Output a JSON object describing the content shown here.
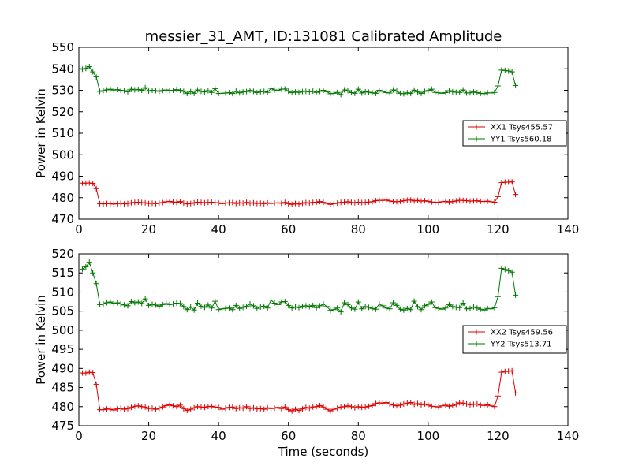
{
  "title": "messier_31_AMT, ID:131081 Calibrated Amplitude",
  "chart_data": [
    {
      "type": "line",
      "title": "messier_31_AMT, ID:131081 Calibrated Amplitude",
      "xlabel": "",
      "ylabel": "Power in Kelvin",
      "xlim": [
        0,
        140
      ],
      "ylim": [
        470,
        550
      ],
      "xticks": [
        0,
        20,
        40,
        60,
        80,
        100,
        120,
        140
      ],
      "yticks": [
        470,
        480,
        490,
        500,
        510,
        520,
        530,
        540,
        550
      ],
      "grid": false,
      "legend_position": "center-right",
      "series": [
        {
          "name": "XX1 Tsys455.57",
          "color": "#dd0000",
          "x": [
            1,
            2,
            3,
            4,
            5,
            6,
            7,
            8,
            9,
            10,
            11,
            12,
            13,
            14,
            15,
            16,
            17,
            18,
            19,
            20,
            21,
            22,
            23,
            24,
            25,
            26,
            27,
            28,
            29,
            30,
            31,
            32,
            33,
            34,
            35,
            36,
            37,
            38,
            39,
            40,
            41,
            42,
            43,
            44,
            45,
            46,
            47,
            48,
            49,
            50,
            51,
            52,
            53,
            54,
            55,
            56,
            57,
            58,
            59,
            60,
            61,
            62,
            63,
            64,
            65,
            66,
            67,
            68,
            69,
            70,
            71,
            72,
            73,
            74,
            75,
            76,
            77,
            78,
            79,
            80,
            81,
            82,
            83,
            84,
            85,
            86,
            87,
            88,
            89,
            90,
            91,
            92,
            93,
            94,
            95,
            96,
            97,
            98,
            99,
            100,
            101,
            102,
            103,
            104,
            105,
            106,
            107,
            108,
            109,
            110,
            111,
            112,
            113,
            114,
            115,
            116,
            117,
            118,
            119,
            120,
            121,
            122,
            123,
            124,
            125
          ],
          "y": [
            486.8,
            486.8,
            486.9,
            486.7,
            484.2,
            477.2,
            477.1,
            477.3,
            477.2,
            477.0,
            477.2,
            477.4,
            477.1,
            477.3,
            477.6,
            477.8,
            477.9,
            477.7,
            477.6,
            477.3,
            477.4,
            477.2,
            477.5,
            477.7,
            478.1,
            478.3,
            478.0,
            477.8,
            478.2,
            477.5,
            477.1,
            477.3,
            477.6,
            477.9,
            477.8,
            477.6,
            477.8,
            477.9,
            477.7,
            477.6,
            477.2,
            477.5,
            477.6,
            477.7,
            477.3,
            477.6,
            477.5,
            477.8,
            477.4,
            477.6,
            477.3,
            477.4,
            477.2,
            477.6,
            477.3,
            477.5,
            477.6,
            477.4,
            477.8,
            477.2,
            476.9,
            477.3,
            477.0,
            477.4,
            477.7,
            477.5,
            477.8,
            477.9,
            478.2,
            477.8,
            477.3,
            476.9,
            477.2,
            477.5,
            477.8,
            477.9,
            478.1,
            477.8,
            477.6,
            477.9,
            477.7,
            477.8,
            478.0,
            478.1,
            478.6,
            478.8,
            478.7,
            478.9,
            478.5,
            478.2,
            478.1,
            478.3,
            478.6,
            478.8,
            478.9,
            478.5,
            478.7,
            478.4,
            478.6,
            478.3,
            478.0,
            477.9,
            477.8,
            478.1,
            478.3,
            478.0,
            478.2,
            478.5,
            478.8,
            478.7,
            478.6,
            478.4,
            478.5,
            478.6,
            478.3,
            478.2,
            478.4,
            478.1,
            477.9,
            480.5,
            487.0,
            487.2,
            487.3,
            487.4,
            481.5
          ]
        },
        {
          "name": "YY1 Tsys560.18",
          "color": "#007700",
          "x": [
            1,
            2,
            3,
            4,
            5,
            6,
            7,
            8,
            9,
            10,
            11,
            12,
            13,
            14,
            15,
            16,
            17,
            18,
            19,
            20,
            21,
            22,
            23,
            24,
            25,
            26,
            27,
            28,
            29,
            30,
            31,
            32,
            33,
            34,
            35,
            36,
            37,
            38,
            39,
            40,
            41,
            42,
            43,
            44,
            45,
            46,
            47,
            48,
            49,
            50,
            51,
            52,
            53,
            54,
            55,
            56,
            57,
            58,
            59,
            60,
            61,
            62,
            63,
            64,
            65,
            66,
            67,
            68,
            69,
            70,
            71,
            72,
            73,
            74,
            75,
            76,
            77,
            78,
            79,
            80,
            81,
            82,
            83,
            84,
            85,
            86,
            87,
            88,
            89,
            90,
            91,
            92,
            93,
            94,
            95,
            96,
            97,
            98,
            99,
            100,
            101,
            102,
            103,
            104,
            105,
            106,
            107,
            108,
            109,
            110,
            111,
            112,
            113,
            114,
            115,
            116,
            117,
            118,
            119,
            120,
            121,
            122,
            123,
            124,
            125
          ],
          "y": [
            539.8,
            540.2,
            541.0,
            538.6,
            536.2,
            529.5,
            529.8,
            530.2,
            530.5,
            530.1,
            530.3,
            530.0,
            529.8,
            529.3,
            530.5,
            530.2,
            530.4,
            530.0,
            531.2,
            529.6,
            530.0,
            529.8,
            529.5,
            529.9,
            530.2,
            529.8,
            530.0,
            530.3,
            530.0,
            529.5,
            528.5,
            529.4,
            528.6,
            530.2,
            529.5,
            529.2,
            529.8,
            529.0,
            530.8,
            528.5,
            528.6,
            528.7,
            528.9,
            528.5,
            529.6,
            528.8,
            529.2,
            529.4,
            530.0,
            529.5,
            528.9,
            529.3,
            529.5,
            529.0,
            530.9,
            530.2,
            529.8,
            530.5,
            530.6,
            529.6,
            528.9,
            529.2,
            529.0,
            529.4,
            529.5,
            529.3,
            529.6,
            529.0,
            529.5,
            530.0,
            529.3,
            528.4,
            528.6,
            529.0,
            528.0,
            530.2,
            529.8,
            528.9,
            528.6,
            530.5,
            528.7,
            529.3,
            529.1,
            528.8,
            528.6,
            530.0,
            529.5,
            528.9,
            528.7,
            530.2,
            529.6,
            528.6,
            528.4,
            528.8,
            528.5,
            530.1,
            529.2,
            528.5,
            529.5,
            529.9,
            530.5,
            529.0,
            528.8,
            528.6,
            528.9,
            529.8,
            529.3,
            529.1,
            529.0,
            530.2,
            528.7,
            528.8,
            529.2,
            528.9,
            528.6,
            528.4,
            528.8,
            528.7,
            529.0,
            532.0,
            539.4,
            539.2,
            539.0,
            538.6,
            532.2
          ]
        }
      ]
    },
    {
      "type": "line",
      "title": "",
      "xlabel": "Time (seconds)",
      "ylabel": "Power in Kelvin",
      "xlim": [
        0,
        140
      ],
      "ylim": [
        475,
        520
      ],
      "xticks": [
        0,
        20,
        40,
        60,
        80,
        100,
        120,
        140
      ],
      "yticks": [
        475,
        480,
        485,
        490,
        495,
        500,
        505,
        510,
        515,
        520
      ],
      "grid": false,
      "legend_position": "center-right",
      "series": [
        {
          "name": "XX2 Tsys459.56",
          "color": "#dd0000",
          "x": [
            1,
            2,
            3,
            4,
            5,
            6,
            7,
            8,
            9,
            10,
            11,
            12,
            13,
            14,
            15,
            16,
            17,
            18,
            19,
            20,
            21,
            22,
            23,
            24,
            25,
            26,
            27,
            28,
            29,
            30,
            31,
            32,
            33,
            34,
            35,
            36,
            37,
            38,
            39,
            40,
            41,
            42,
            43,
            44,
            45,
            46,
            47,
            48,
            49,
            50,
            51,
            52,
            53,
            54,
            55,
            56,
            57,
            58,
            59,
            60,
            61,
            62,
            63,
            64,
            65,
            66,
            67,
            68,
            69,
            70,
            71,
            72,
            73,
            74,
            75,
            76,
            77,
            78,
            79,
            80,
            81,
            82,
            83,
            84,
            85,
            86,
            87,
            88,
            89,
            90,
            91,
            92,
            93,
            94,
            95,
            96,
            97,
            98,
            99,
            100,
            101,
            102,
            103,
            104,
            105,
            106,
            107,
            108,
            109,
            110,
            111,
            112,
            113,
            114,
            115,
            116,
            117,
            118,
            119,
            120,
            121,
            122,
            123,
            124,
            125
          ],
          "y": [
            488.8,
            488.8,
            489.0,
            488.9,
            485.8,
            479.2,
            479.2,
            479.4,
            479.3,
            479.1,
            479.4,
            479.6,
            479.3,
            479.5,
            479.8,
            480.1,
            480.2,
            480.0,
            479.9,
            479.5,
            479.6,
            479.3,
            479.6,
            479.9,
            480.3,
            480.5,
            480.2,
            480.0,
            480.4,
            479.5,
            479.0,
            479.3,
            479.7,
            480.0,
            479.9,
            479.8,
            480.0,
            480.1,
            479.9,
            479.8,
            479.3,
            479.6,
            479.8,
            479.9,
            479.5,
            479.7,
            479.6,
            480.0,
            479.5,
            479.7,
            479.4,
            479.5,
            479.3,
            479.7,
            479.5,
            479.6,
            479.8,
            479.5,
            479.9,
            479.2,
            478.9,
            479.3,
            479.0,
            479.4,
            479.8,
            479.6,
            479.9,
            480.0,
            480.3,
            479.9,
            479.3,
            478.9,
            479.3,
            479.6,
            479.9,
            480.0,
            480.2,
            480.0,
            479.7,
            480.0,
            479.8,
            479.9,
            480.1,
            480.3,
            480.8,
            481.0,
            480.9,
            481.1,
            480.7,
            480.4,
            480.2,
            480.4,
            480.7,
            480.9,
            481.1,
            480.6,
            480.8,
            480.5,
            480.7,
            480.4,
            480.1,
            480.0,
            479.9,
            480.2,
            480.4,
            480.1,
            480.3,
            480.6,
            481.0,
            480.9,
            480.7,
            480.5,
            480.6,
            480.7,
            480.4,
            480.3,
            480.5,
            480.2,
            480.0,
            482.8,
            489.0,
            489.2,
            489.3,
            489.4,
            483.6
          ]
        },
        {
          "name": "YY2 Tsys513.71",
          "color": "#007700",
          "x": [
            1,
            2,
            3,
            4,
            5,
            6,
            7,
            8,
            9,
            10,
            11,
            12,
            13,
            14,
            15,
            16,
            17,
            18,
            19,
            20,
            21,
            22,
            23,
            24,
            25,
            26,
            27,
            28,
            29,
            30,
            31,
            32,
            33,
            34,
            35,
            36,
            37,
            38,
            39,
            40,
            41,
            42,
            43,
            44,
            45,
            46,
            47,
            48,
            49,
            50,
            51,
            52,
            53,
            54,
            55,
            56,
            57,
            58,
            59,
            60,
            61,
            62,
            63,
            64,
            65,
            66,
            67,
            68,
            69,
            70,
            71,
            72,
            73,
            74,
            75,
            76,
            77,
            78,
            79,
            80,
            81,
            82,
            83,
            84,
            85,
            86,
            87,
            88,
            89,
            90,
            91,
            92,
            93,
            94,
            95,
            96,
            97,
            98,
            99,
            100,
            101,
            102,
            103,
            104,
            105,
            106,
            107,
            108,
            109,
            110,
            111,
            112,
            113,
            114,
            115,
            116,
            117,
            118,
            119,
            120,
            121,
            122,
            123,
            124,
            125
          ],
          "y": [
            516.0,
            516.6,
            517.8,
            515.0,
            512.2,
            506.7,
            506.9,
            507.2,
            507.4,
            507.0,
            507.2,
            506.9,
            506.6,
            506.4,
            507.5,
            507.2,
            507.4,
            507.0,
            508.2,
            506.5,
            506.8,
            506.6,
            506.3,
            506.7,
            507.0,
            506.7,
            506.9,
            507.1,
            507.0,
            506.2,
            505.4,
            506.1,
            505.3,
            507.1,
            506.3,
            506.0,
            506.6,
            505.8,
            507.6,
            505.4,
            505.6,
            505.7,
            505.8,
            505.4,
            506.5,
            505.7,
            506.0,
            506.3,
            506.9,
            506.4,
            505.7,
            506.1,
            506.3,
            505.8,
            507.9,
            507.1,
            506.7,
            507.4,
            507.5,
            506.5,
            505.8,
            506.1,
            505.9,
            506.3,
            506.4,
            506.2,
            506.5,
            505.9,
            506.4,
            506.9,
            506.2,
            505.2,
            505.4,
            505.8,
            504.8,
            507.2,
            506.7,
            505.8,
            505.5,
            507.4,
            505.6,
            506.2,
            506.0,
            505.7,
            505.5,
            506.9,
            506.4,
            505.8,
            505.6,
            507.2,
            506.5,
            505.5,
            505.3,
            505.7,
            505.4,
            507.6,
            506.2,
            505.4,
            506.4,
            506.8,
            507.4,
            505.9,
            505.7,
            505.5,
            505.8,
            506.7,
            506.2,
            506.0,
            505.9,
            507.1,
            505.6,
            505.7,
            506.1,
            505.8,
            505.5,
            505.3,
            505.7,
            505.6,
            505.9,
            508.8,
            516.2,
            515.9,
            515.6,
            515.2,
            509.2
          ]
        }
      ]
    }
  ]
}
